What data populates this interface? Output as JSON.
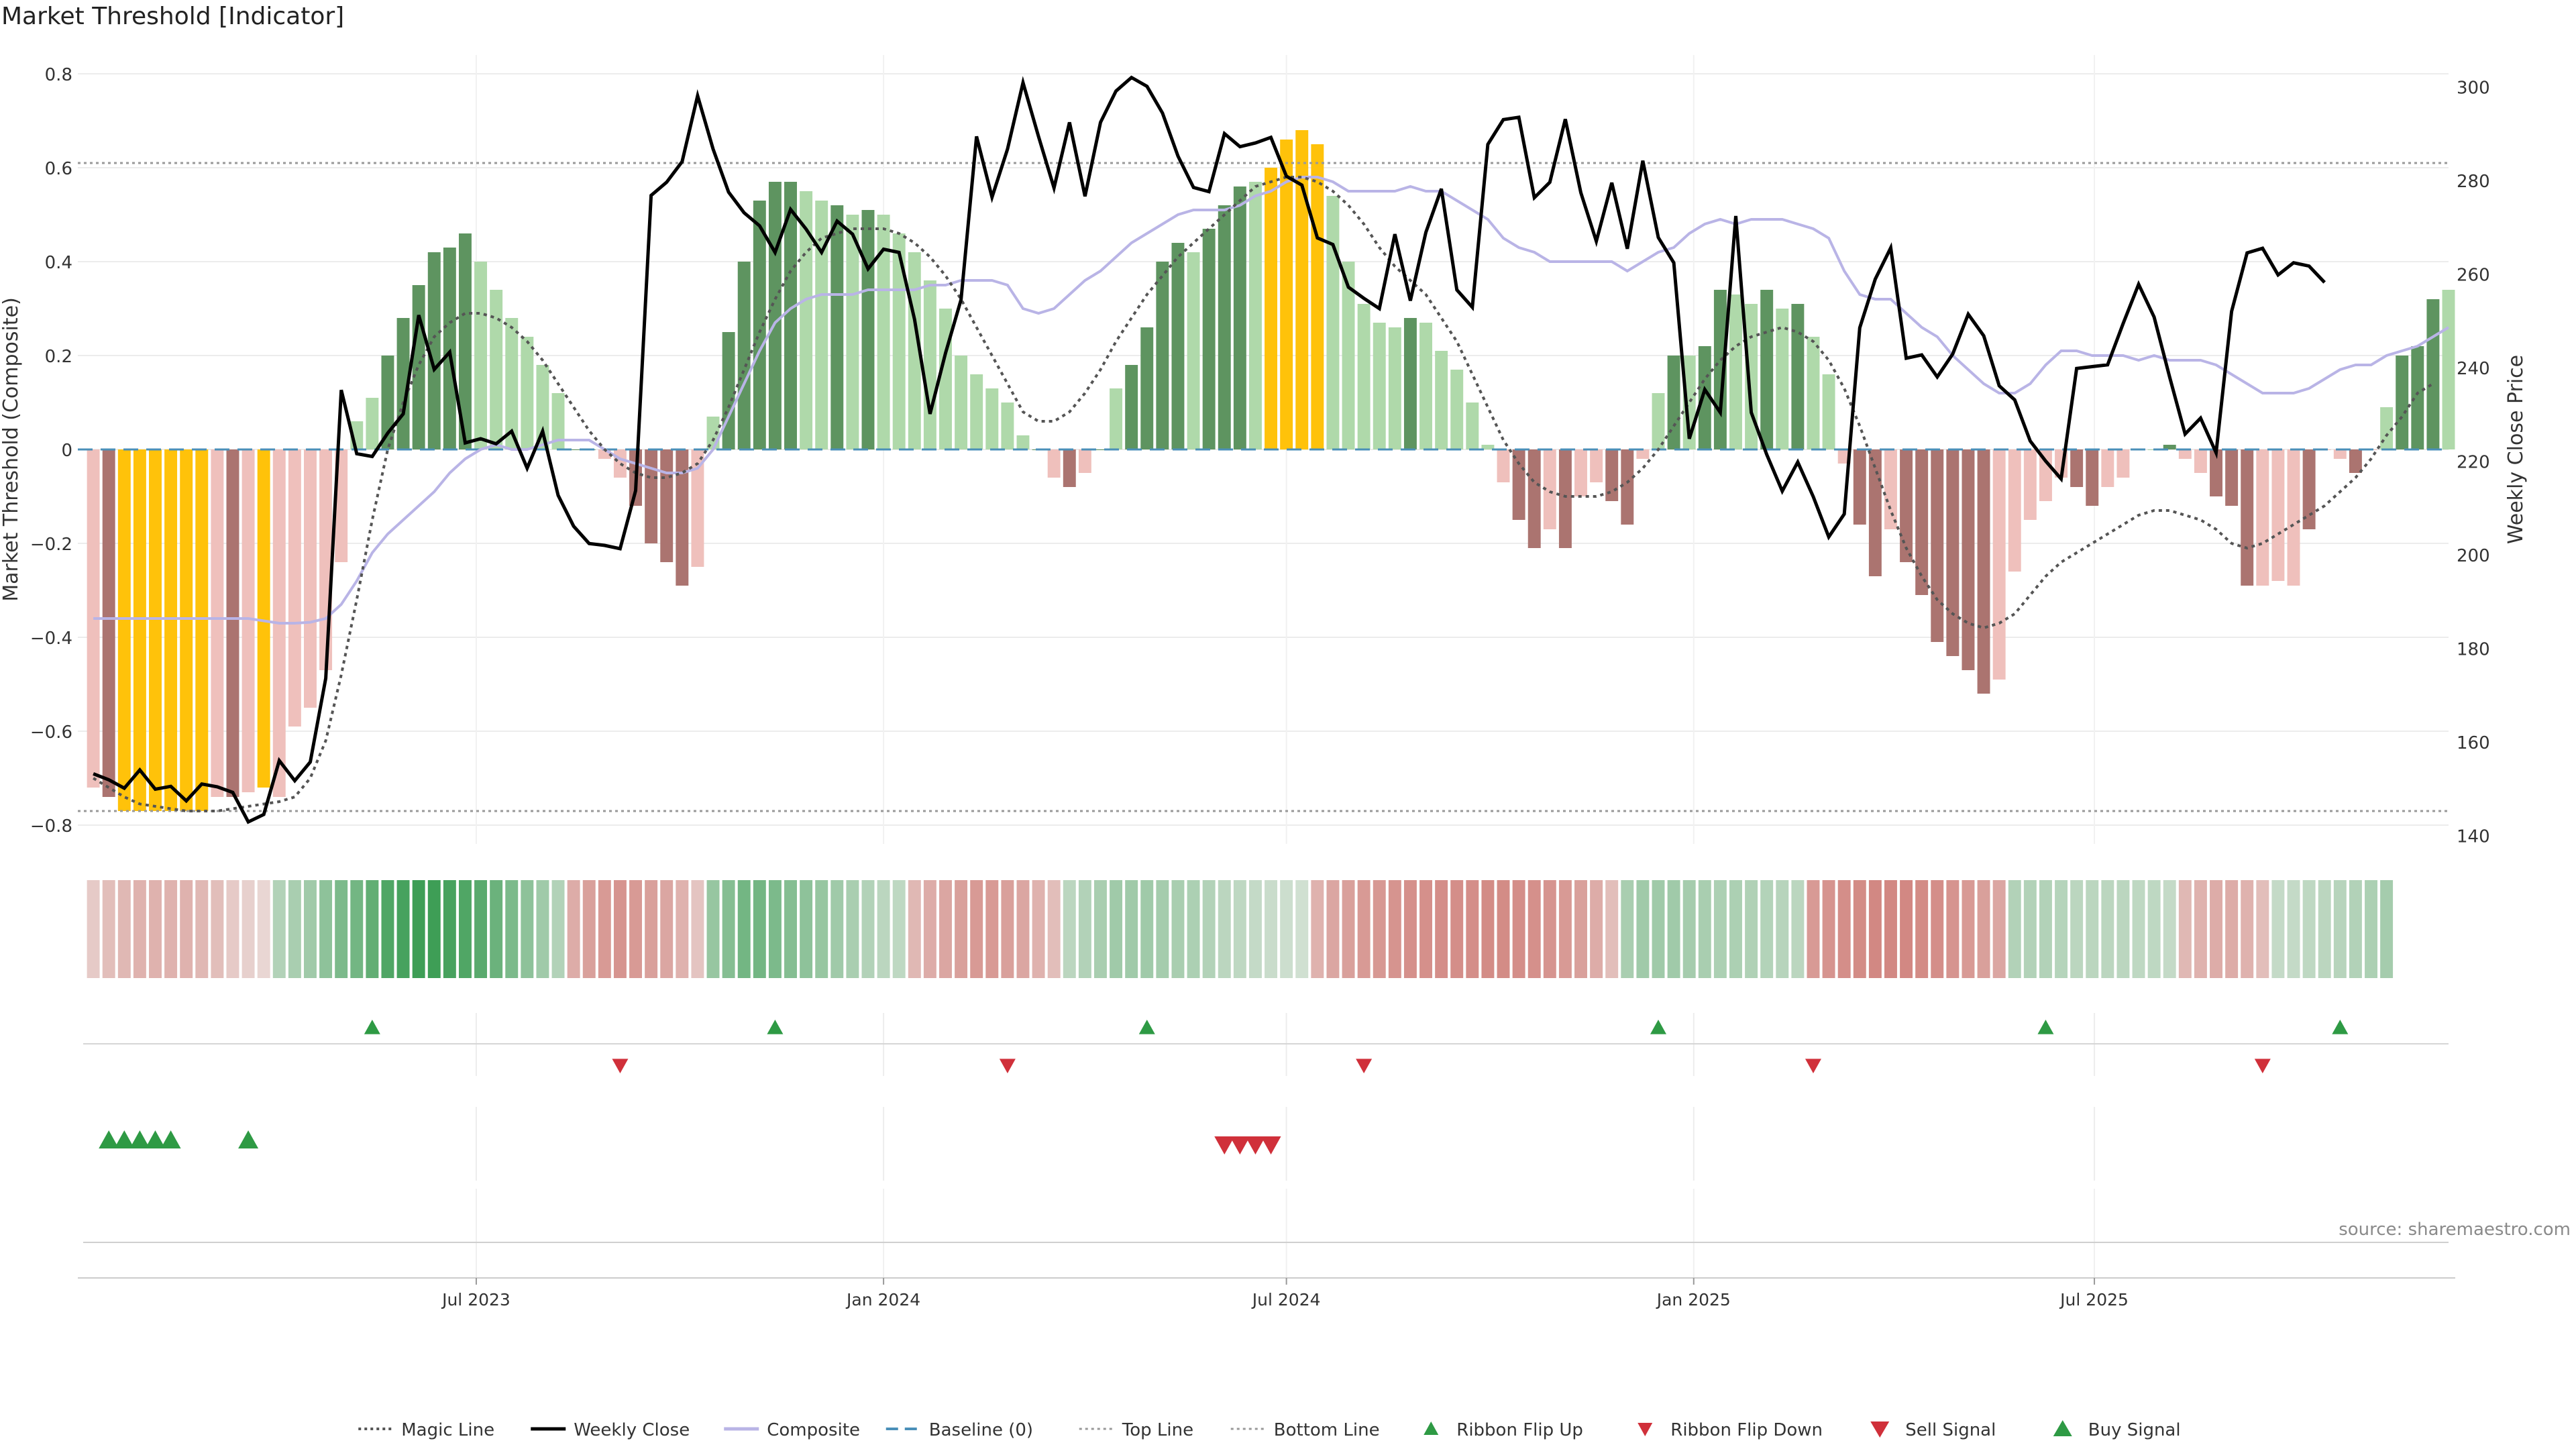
{
  "title": "Market Threshold [Indicator]",
  "source": "source: sharemaestro.com",
  "colors": {
    "bar_strong_up": "#5e9460",
    "bar_weak_up": "#afd9aa",
    "bar_strong_down": "#ab7470",
    "bar_weak_down": "#efc0bc",
    "bar_extreme": "#ffc20a",
    "weekly_close": "#000000",
    "composite": "#b9b4e6",
    "magic_line": "#555555",
    "baseline": "#4a8fb8",
    "threshold_line": "#999999",
    "signal_up": "#2e9a44",
    "signal_down": "#d0303a"
  },
  "chart_data": {
    "type": "bar",
    "x_range": [
      "2023-01-02",
      "2025-12-08"
    ],
    "x_ticks": [
      {
        "date": "2023-07-01",
        "label": "Jul 2023"
      },
      {
        "date": "2024-01-01",
        "label": "Jan 2024"
      },
      {
        "date": "2024-07-01",
        "label": "Jul 2024"
      },
      {
        "date": "2025-01-01",
        "label": "Jan 2025"
      },
      {
        "date": "2025-07-01",
        "label": "Jul 2025"
      }
    ],
    "y_left": {
      "label": "Market Threshold (Composite)",
      "range": [
        -0.84,
        0.84
      ],
      "ticks": [
        -0.8,
        -0.6,
        -0.4,
        -0.2,
        0,
        0.2,
        0.4,
        0.6,
        0.8
      ],
      "tick_labels": [
        "−0.8",
        "−0.6",
        "−0.4",
        "−0.2",
        "0",
        "0.2",
        "0.4",
        "0.6",
        "0.8"
      ]
    },
    "y_right": {
      "label": "Weekly Close Price",
      "range": [
        138.2,
        306.8
      ],
      "ticks": [
        140,
        160,
        180,
        200,
        220,
        240,
        260,
        280,
        300
      ],
      "tick_labels": [
        "140",
        "160",
        "180",
        "200",
        "220",
        "240",
        "260",
        "280",
        "300"
      ]
    },
    "top_line": 0.61,
    "bottom_line": -0.77,
    "grid": true,
    "composite_bars": [
      -0.72,
      -0.74,
      -0.77,
      -0.77,
      -0.77,
      -0.77,
      -0.77,
      -0.77,
      -0.74,
      -0.74,
      -0.73,
      -0.72,
      -0.74,
      -0.59,
      -0.55,
      -0.47,
      -0.24,
      0.06,
      0.11,
      0.2,
      0.28,
      0.35,
      0.42,
      0.43,
      0.46,
      0.4,
      0.34,
      0.28,
      0.24,
      0.18,
      0.12,
      0.0,
      0.0,
      -0.02,
      -0.06,
      -0.12,
      -0.2,
      -0.24,
      -0.29,
      -0.25,
      0.07,
      0.25,
      0.4,
      0.53,
      0.57,
      0.57,
      0.55,
      0.53,
      0.52,
      0.5,
      0.51,
      0.5,
      0.46,
      0.42,
      0.36,
      0.3,
      0.2,
      0.16,
      0.13,
      0.1,
      0.03,
      0.0,
      -0.06,
      -0.08,
      -0.05,
      0.0,
      0.13,
      0.18,
      0.26,
      0.4,
      0.44,
      0.42,
      0.47,
      0.52,
      0.56,
      0.57,
      0.6,
      0.66,
      0.68,
      0.65,
      0.54,
      0.4,
      0.31,
      0.27,
      0.26,
      0.28,
      0.27,
      0.21,
      0.17,
      0.1,
      0.01,
      -0.07,
      -0.15,
      -0.21,
      -0.17,
      -0.21,
      -0.1,
      -0.07,
      -0.11,
      -0.16,
      -0.02,
      0.12,
      0.2,
      0.2,
      0.22,
      0.34,
      0.33,
      0.31,
      0.34,
      0.3,
      0.31,
      0.24,
      0.16,
      -0.03,
      -0.16,
      -0.27,
      -0.17,
      -0.24,
      -0.31,
      -0.41,
      -0.44,
      -0.47,
      -0.52,
      -0.49,
      -0.26,
      -0.15,
      -0.11,
      -0.06,
      -0.08,
      -0.12,
      -0.08,
      -0.06,
      0.0,
      0.0,
      0.01,
      -0.02,
      -0.05,
      -0.1,
      -0.12,
      -0.29,
      -0.29,
      -0.28,
      -0.29,
      -0.17,
      0.0,
      -0.02,
      -0.05,
      0.0,
      0.09,
      0.2,
      0.22,
      0.32,
      0.34
    ],
    "bar_classes": [
      "wd",
      "sd",
      "x",
      "x",
      "x",
      "x",
      "x",
      "x",
      "wd",
      "sd",
      "wd",
      "x",
      "wd",
      "wd",
      "wd",
      "wd",
      "wd",
      "wu",
      "wu",
      "su",
      "su",
      "su",
      "su",
      "su",
      "su",
      "wu",
      "wu",
      "wu",
      "wu",
      "wu",
      "wu",
      "su",
      "su",
      "wd",
      "wd",
      "sd",
      "sd",
      "sd",
      "sd",
      "wd",
      "wu",
      "su",
      "su",
      "su",
      "su",
      "su",
      "wu",
      "wu",
      "su",
      "wu",
      "su",
      "wu",
      "wu",
      "wu",
      "wu",
      "wu",
      "wu",
      "wu",
      "wu",
      "wu",
      "wu",
      "su",
      "wd",
      "sd",
      "wd",
      "su",
      "wu",
      "su",
      "su",
      "su",
      "su",
      "wu",
      "su",
      "su",
      "su",
      "wu",
      "x",
      "x",
      "x",
      "x",
      "wu",
      "wu",
      "wu",
      "wu",
      "wu",
      "su",
      "wu",
      "wu",
      "wu",
      "wu",
      "wu",
      "wd",
      "sd",
      "sd",
      "wd",
      "sd",
      "wd",
      "wd",
      "sd",
      "sd",
      "wd",
      "wu",
      "su",
      "wu",
      "su",
      "su",
      "wu",
      "wu",
      "su",
      "wu",
      "su",
      "wu",
      "wu",
      "wd",
      "sd",
      "sd",
      "wd",
      "sd",
      "sd",
      "sd",
      "sd",
      "sd",
      "sd",
      "wd",
      "wd",
      "wd",
      "wd",
      "wd",
      "sd",
      "sd",
      "wd",
      "wd",
      "wu",
      "wu",
      "su",
      "wd",
      "wd",
      "sd",
      "sd",
      "sd",
      "wd",
      "wd",
      "wd",
      "sd",
      "wd",
      "wd",
      "sd",
      "wd",
      "wu",
      "su",
      "su",
      "su",
      "wu"
    ],
    "composite_line": [
      -0.36,
      -0.36,
      -0.36,
      -0.36,
      -0.36,
      -0.36,
      -0.36,
      -0.36,
      -0.36,
      -0.36,
      -0.36,
      -0.365,
      -0.37,
      -0.37,
      -0.368,
      -0.36,
      -0.33,
      -0.28,
      -0.22,
      -0.18,
      -0.15,
      -0.12,
      -0.09,
      -0.05,
      -0.02,
      0.0,
      0.01,
      0.0,
      0.0,
      0.01,
      0.02,
      0.02,
      0.02,
      0.0,
      -0.02,
      -0.03,
      -0.04,
      -0.05,
      -0.05,
      -0.04,
      0.0,
      0.07,
      0.14,
      0.21,
      0.27,
      0.3,
      0.32,
      0.33,
      0.33,
      0.33,
      0.34,
      0.34,
      0.34,
      0.34,
      0.35,
      0.35,
      0.36,
      0.36,
      0.36,
      0.35,
      0.3,
      0.29,
      0.3,
      0.33,
      0.36,
      0.38,
      0.41,
      0.44,
      0.46,
      0.48,
      0.5,
      0.51,
      0.51,
      0.51,
      0.52,
      0.54,
      0.55,
      0.57,
      0.58,
      0.58,
      0.57,
      0.55,
      0.55,
      0.55,
      0.55,
      0.56,
      0.55,
      0.55,
      0.53,
      0.51,
      0.49,
      0.45,
      0.43,
      0.42,
      0.4,
      0.4,
      0.4,
      0.4,
      0.4,
      0.38,
      0.4,
      0.42,
      0.43,
      0.46,
      0.48,
      0.49,
      0.48,
      0.49,
      0.49,
      0.49,
      0.48,
      0.47,
      0.45,
      0.38,
      0.33,
      0.32,
      0.32,
      0.29,
      0.26,
      0.24,
      0.2,
      0.17,
      0.14,
      0.12,
      0.12,
      0.14,
      0.18,
      0.21,
      0.21,
      0.2,
      0.2,
      0.2,
      0.19,
      0.2,
      0.19,
      0.19,
      0.19,
      0.18,
      0.16,
      0.14,
      0.12,
      0.12,
      0.12,
      0.13,
      0.15,
      0.17,
      0.18,
      0.18,
      0.2,
      0.21,
      0.22,
      0.24,
      0.26
    ],
    "magic_line": [
      -0.7,
      -0.72,
      -0.74,
      -0.755,
      -0.76,
      -0.765,
      -0.77,
      -0.77,
      -0.77,
      -0.765,
      -0.76,
      -0.755,
      -0.75,
      -0.74,
      -0.7,
      -0.62,
      -0.48,
      -0.32,
      -0.15,
      0.0,
      0.1,
      0.18,
      0.24,
      0.27,
      0.29,
      0.29,
      0.28,
      0.26,
      0.23,
      0.19,
      0.14,
      0.09,
      0.04,
      0.0,
      -0.03,
      -0.05,
      -0.06,
      -0.06,
      -0.05,
      -0.03,
      0.02,
      0.09,
      0.17,
      0.25,
      0.32,
      0.38,
      0.42,
      0.45,
      0.46,
      0.47,
      0.47,
      0.47,
      0.46,
      0.44,
      0.41,
      0.37,
      0.32,
      0.26,
      0.2,
      0.14,
      0.08,
      0.06,
      0.06,
      0.08,
      0.12,
      0.17,
      0.23,
      0.28,
      0.33,
      0.37,
      0.41,
      0.44,
      0.47,
      0.5,
      0.53,
      0.56,
      0.57,
      0.58,
      0.58,
      0.57,
      0.55,
      0.52,
      0.48,
      0.43,
      0.39,
      0.36,
      0.33,
      0.28,
      0.23,
      0.16,
      0.09,
      0.02,
      -0.03,
      -0.07,
      -0.09,
      -0.1,
      -0.1,
      -0.1,
      -0.09,
      -0.07,
      -0.04,
      0.0,
      0.05,
      0.1,
      0.15,
      0.19,
      0.22,
      0.24,
      0.25,
      0.26,
      0.25,
      0.23,
      0.19,
      0.13,
      0.05,
      -0.04,
      -0.13,
      -0.21,
      -0.27,
      -0.32,
      -0.35,
      -0.37,
      -0.38,
      -0.37,
      -0.35,
      -0.31,
      -0.27,
      -0.24,
      -0.22,
      -0.2,
      -0.18,
      -0.16,
      -0.14,
      -0.13,
      -0.13,
      -0.14,
      -0.15,
      -0.17,
      -0.2,
      -0.21,
      -0.2,
      -0.18,
      -0.16,
      -0.14,
      -0.12,
      -0.09,
      -0.06,
      -0.02,
      0.03,
      0.07,
      0.12,
      0.14
    ],
    "weekly_close": [
      153.2,
      151.9,
      150.1,
      154.0,
      149.9,
      150.5,
      147.4,
      151.0,
      150.4,
      149.2,
      142.9,
      144.5,
      156.0,
      151.7,
      155.7,
      173.6,
      235.2,
      221.6,
      221.0,
      226.0,
      230.1,
      251.2,
      239.6,
      243.3,
      223.9,
      224.8,
      223.7,
      226.4,
      218.5,
      226.4,
      212.7,
      206.1,
      202.4,
      202.0,
      201.3,
      213.7,
      276.8,
      279.6,
      284.0,
      298.1,
      286.7,
      277.5,
      273.1,
      270.3,
      264.6,
      273.8,
      269.6,
      264.6,
      271.3,
      268.5,
      261.1,
      265.3,
      264.6,
      250.3,
      230.1,
      243.1,
      254.5,
      289.4,
      276.4,
      286.7,
      300.9,
      289.4,
      278.4,
      292.4,
      276.6,
      292.4,
      299.1,
      302.0,
      300.1,
      294.4,
      285.2,
      278.5,
      277.6,
      290.0,
      287.2,
      288.0,
      289.2,
      280.9,
      279.0,
      267.7,
      266.3,
      257.2,
      254.8,
      252.6,
      268.5,
      254.3,
      268.9,
      278.2,
      256.6,
      252.9,
      287.7,
      293.0,
      293.5,
      276.3,
      279.6,
      293.1,
      277.4,
      267.0,
      279.5,
      265.4,
      284.2,
      267.8,
      262.4,
      224.8,
      235.3,
      230.4,
      272.4,
      230.4,
      221.4,
      213.6,
      219.8,
      212.4,
      203.8,
      208.7,
      248.5,
      258.9,
      265.6,
      242.0,
      242.7,
      238.0,
      242.9,
      251.4,
      246.8,
      236.1,
      233.1,
      224.3,
      220.0,
      216.2,
      239.8,
      240.2,
      240.6,
      249.4,
      257.8,
      250.8,
      238.0,
      225.8,
      229.2,
      221.8,
      252.0,
      264.5,
      265.5,
      259.8,
      262.4,
      261.7,
      258.2
    ],
    "ribbon_levels": [
      -0.3,
      -0.4,
      -0.45,
      -0.5,
      -0.5,
      -0.5,
      -0.5,
      -0.45,
      -0.4,
      -0.3,
      -0.25,
      -0.2,
      0.35,
      0.4,
      0.45,
      0.55,
      0.65,
      0.7,
      0.8,
      0.9,
      0.95,
      1.0,
      1.0,
      0.95,
      0.9,
      0.85,
      0.75,
      0.65,
      0.55,
      0.45,
      0.35,
      -0.55,
      -0.65,
      -0.7,
      -0.75,
      -0.7,
      -0.65,
      -0.6,
      -0.5,
      -0.35,
      0.5,
      0.6,
      0.7,
      0.7,
      0.65,
      0.6,
      0.55,
      0.5,
      0.45,
      0.4,
      0.35,
      0.3,
      0.28,
      -0.45,
      -0.55,
      -0.6,
      -0.65,
      -0.7,
      -0.7,
      -0.65,
      -0.6,
      -0.5,
      -0.4,
      0.3,
      0.35,
      0.4,
      0.45,
      0.45,
      0.45,
      0.42,
      0.4,
      0.38,
      0.35,
      0.3,
      0.28,
      0.25,
      0.22,
      0.2,
      0.18,
      -0.5,
      -0.6,
      -0.65,
      -0.7,
      -0.72,
      -0.75,
      -0.78,
      -0.78,
      -0.8,
      -0.8,
      -0.8,
      -0.82,
      -0.82,
      -0.8,
      -0.78,
      -0.75,
      -0.7,
      -0.65,
      -0.55,
      -0.4,
      0.4,
      0.45,
      0.45,
      0.45,
      0.42,
      0.4,
      0.38,
      0.38,
      0.36,
      0.34,
      0.32,
      0.3,
      -0.7,
      -0.75,
      -0.8,
      -0.82,
      -0.85,
      -0.85,
      -0.85,
      -0.82,
      -0.8,
      -0.75,
      -0.7,
      -0.65,
      -0.6,
      0.35,
      0.35,
      0.35,
      0.33,
      0.3,
      0.3,
      0.3,
      0.3,
      0.28,
      0.28,
      0.25,
      -0.45,
      -0.5,
      -0.55,
      -0.55,
      -0.5,
      -0.4,
      0.25,
      0.25,
      0.28,
      0.3,
      0.32,
      0.35,
      0.38,
      0.42
    ],
    "ribbon_flip_up": [
      "2023-05-15",
      "2023-11-13",
      "2024-04-29",
      "2024-12-16",
      "2025-06-09",
      "2025-10-20"
    ],
    "ribbon_flip_down": [
      "2023-09-04",
      "2024-02-26",
      "2024-08-05",
      "2025-02-24",
      "2025-09-15"
    ],
    "buy_signals": [
      "2023-01-16",
      "2023-01-23",
      "2023-01-30",
      "2023-02-06",
      "2023-02-13",
      "2023-03-20"
    ],
    "sell_signals": [
      "2024-06-03",
      "2024-06-10",
      "2024-06-17",
      "2024-06-24"
    ],
    "legend": {
      "placement": "bottom-center",
      "items": [
        {
          "label": "Magic Line",
          "symbol": "dotted-line"
        },
        {
          "label": "Weekly Close",
          "symbol": "solid-line"
        },
        {
          "label": "Composite",
          "symbol": "lilac-line"
        },
        {
          "label": "Baseline (0)",
          "symbol": "dashed-line"
        },
        {
          "label": "Top Line",
          "symbol": "dotted-gray"
        },
        {
          "label": "Bottom Line",
          "symbol": "dotted-gray"
        },
        {
          "label": "Ribbon Flip Up",
          "symbol": "triangle-up-small"
        },
        {
          "label": "Ribbon Flip Down",
          "symbol": "triangle-down-small"
        },
        {
          "label": "Sell Signal",
          "symbol": "triangle-down"
        },
        {
          "label": "Buy Signal",
          "symbol": "triangle-up"
        }
      ]
    }
  }
}
